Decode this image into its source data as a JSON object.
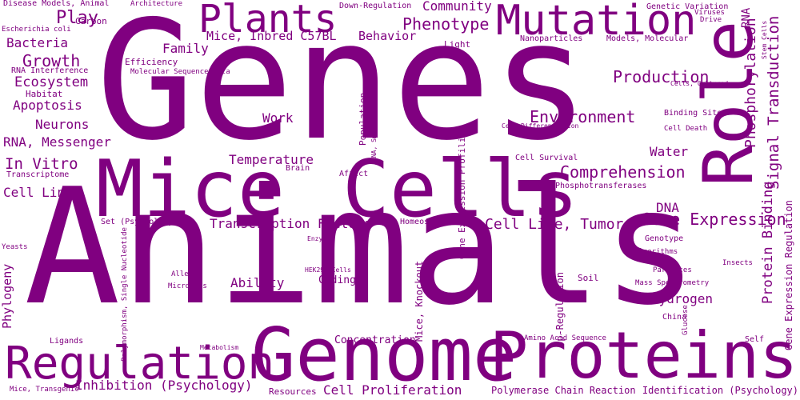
{
  "colors": {
    "text": "#800080",
    "background": "#ffffff"
  },
  "words": [
    {
      "text": "Genes"
    },
    {
      "text": "Animals"
    },
    {
      "text": "Mice"
    },
    {
      "text": "Cells"
    },
    {
      "text": "Role"
    },
    {
      "text": "Genome"
    },
    {
      "text": "Proteins"
    },
    {
      "text": "Regulation"
    },
    {
      "text": "Mutation"
    },
    {
      "text": "Plants"
    },
    {
      "text": "Phenotype"
    },
    {
      "text": "Play"
    },
    {
      "text": "Growth"
    },
    {
      "text": "Environment"
    },
    {
      "text": "Production"
    },
    {
      "text": "Comprehension"
    },
    {
      "text": "Gene Expression"
    },
    {
      "text": "Cell Line, Tumor"
    },
    {
      "text": "Transcription Factors"
    },
    {
      "text": "Inhibition (Psychology)"
    },
    {
      "text": "Cell Proliferation"
    },
    {
      "text": "Signal Transduction"
    },
    {
      "text": "Phosphorylation"
    },
    {
      "text": "Protein Binding"
    },
    {
      "text": "In Vitro"
    },
    {
      "text": "Ecosystem"
    },
    {
      "text": "Apoptosis"
    },
    {
      "text": "Bacteria"
    },
    {
      "text": "Neurons"
    },
    {
      "text": "RNA, Messenger"
    },
    {
      "text": "Cell Line"
    },
    {
      "text": "Family"
    },
    {
      "text": "Mice, Inbred C57BL"
    },
    {
      "text": "Behavior"
    },
    {
      "text": "Community"
    },
    {
      "text": "Temperature"
    },
    {
      "text": "Work"
    },
    {
      "text": "Water"
    },
    {
      "text": "DNA"
    },
    {
      "text": "Hydrogen"
    },
    {
      "text": "Ability"
    },
    {
      "text": "Coding"
    },
    {
      "text": "Concentration"
    },
    {
      "text": "Phylogeny"
    },
    {
      "text": "RNA"
    },
    {
      "text": "Gene Expression Regulation"
    },
    {
      "text": "Gene Expression Profiling"
    },
    {
      "text": "Mice, Knockout"
    },
    {
      "text": "Population"
    },
    {
      "text": "Soil"
    },
    {
      "text": "Up-Regulation"
    },
    {
      "text": "Polymerase Chain Reaction"
    },
    {
      "text": "Identification (Psychology)"
    },
    {
      "text": "Resources"
    },
    {
      "text": "Carbon"
    },
    {
      "text": "Efficiency"
    },
    {
      "text": "Habitat"
    },
    {
      "text": "Light"
    },
    {
      "text": "Architecture"
    },
    {
      "text": "Down-Regulation"
    },
    {
      "text": "Genetic Variation"
    },
    {
      "text": "Disease Models, Animal"
    },
    {
      "text": "Escherichia coli"
    },
    {
      "text": "RNA Interference"
    },
    {
      "text": "Molecular Sequence Data"
    },
    {
      "text": "Nanoparticles"
    },
    {
      "text": "Models, Molecular"
    },
    {
      "text": "Viruses"
    },
    {
      "text": "Drive"
    },
    {
      "text": "Stem Cells"
    },
    {
      "text": "Cells, Cultured"
    },
    {
      "text": "Binding Sites"
    },
    {
      "text": "Cell Differentiation"
    },
    {
      "text": "Cell Death"
    },
    {
      "text": "Cell Survival"
    },
    {
      "text": "Brain"
    },
    {
      "text": "Affect"
    },
    {
      "text": "RNA, Small Interfering"
    },
    {
      "text": "Transcriptome"
    },
    {
      "text": "Phosphotransferases"
    },
    {
      "text": "Set (Psychology)"
    },
    {
      "text": "Homeostasis"
    },
    {
      "text": "Genotype"
    },
    {
      "text": "Algorithms"
    },
    {
      "text": "Enzymes"
    },
    {
      "text": "Polymorphism, Single Nucleotide"
    },
    {
      "text": "Yeasts"
    },
    {
      "text": "Alleles"
    },
    {
      "text": "MicroRNAs"
    },
    {
      "text": "HEK293 Cells"
    },
    {
      "text": "Parasites"
    },
    {
      "text": "Insects"
    },
    {
      "text": "Mass Spectrometry"
    },
    {
      "text": "China"
    },
    {
      "text": "Glucose"
    },
    {
      "text": "Amino Acid Sequence"
    },
    {
      "text": "Self"
    },
    {
      "text": "Ligands"
    },
    {
      "text": "Metabolism"
    },
    {
      "text": "Mice, Transgenic"
    }
  ]
}
